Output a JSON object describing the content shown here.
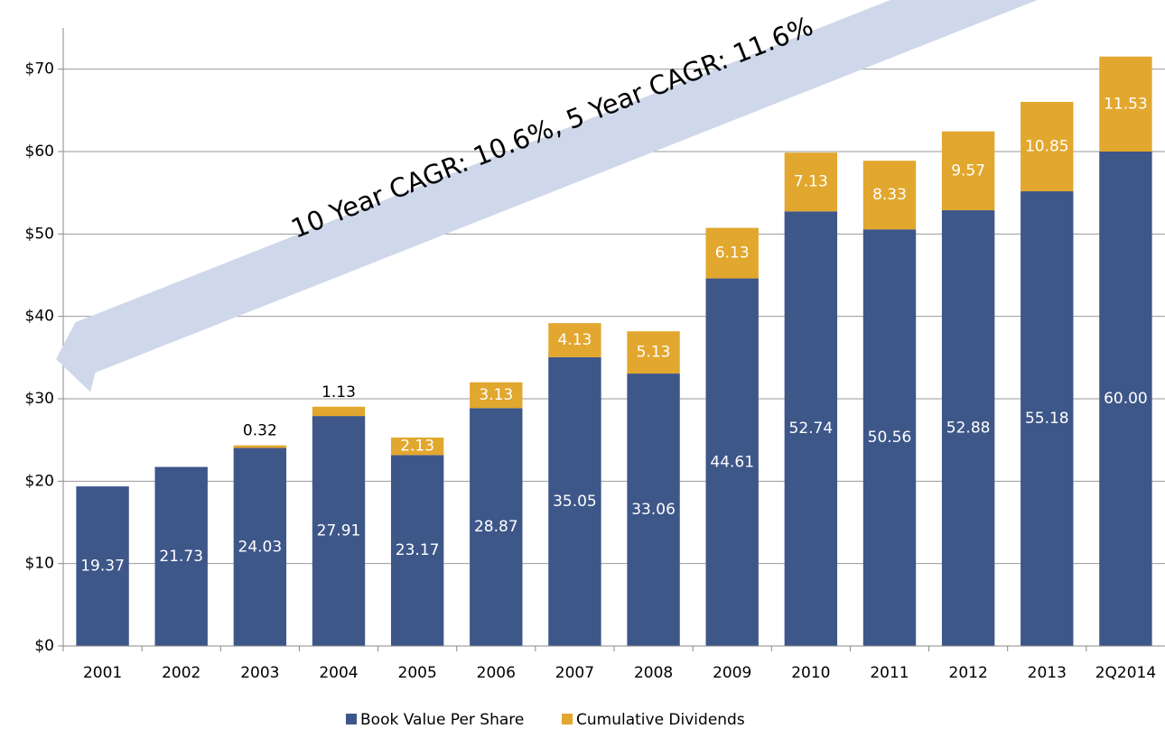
{
  "chart_data": {
    "type": "stacked_bar",
    "annotation": "10 Year CAGR: 10.6%, 5 Year CAGR: 11.6%",
    "categories": [
      "2001",
      "2002",
      "2003",
      "2004",
      "2005",
      "2006",
      "2007",
      "2008",
      "2009",
      "2010",
      "2011",
      "2012",
      "2013",
      "2Q2014"
    ],
    "series": [
      {
        "name": "Book Value Per Share",
        "color": "#3e5789",
        "values": [
          19.37,
          21.73,
          24.03,
          27.91,
          23.17,
          28.87,
          35.05,
          33.06,
          44.61,
          52.74,
          50.56,
          52.88,
          55.18,
          60
        ],
        "value_labels": [
          "19.37",
          "21.73",
          "24.03",
          "27.91",
          "23.17",
          "28.87",
          "35.05",
          "33.06",
          "44.61",
          "52.74",
          "50.56",
          "52.88",
          "55.18",
          "60.00"
        ]
      },
      {
        "name": "Cumulative Dividends",
        "color": "#e2a72e",
        "values": [
          null,
          null,
          0.32,
          1.13,
          2.13,
          3.13,
          4.13,
          5.13,
          6.13,
          7.13,
          8.33,
          9.57,
          10.85,
          11.53
        ]
      }
    ],
    "ylim": [
      0,
      75
    ],
    "yticks": [
      {
        "value": 0,
        "label": "$0"
      },
      {
        "value": 10,
        "label": "$10"
      },
      {
        "value": 20,
        "label": "$20"
      },
      {
        "value": 30,
        "label": "$30"
      },
      {
        "value": 40,
        "label": "$40"
      },
      {
        "value": 50,
        "label": "$50"
      },
      {
        "value": 60,
        "label": "$60"
      },
      {
        "value": 70,
        "label": "$70"
      }
    ],
    "grid": true,
    "legend": "bottom"
  }
}
